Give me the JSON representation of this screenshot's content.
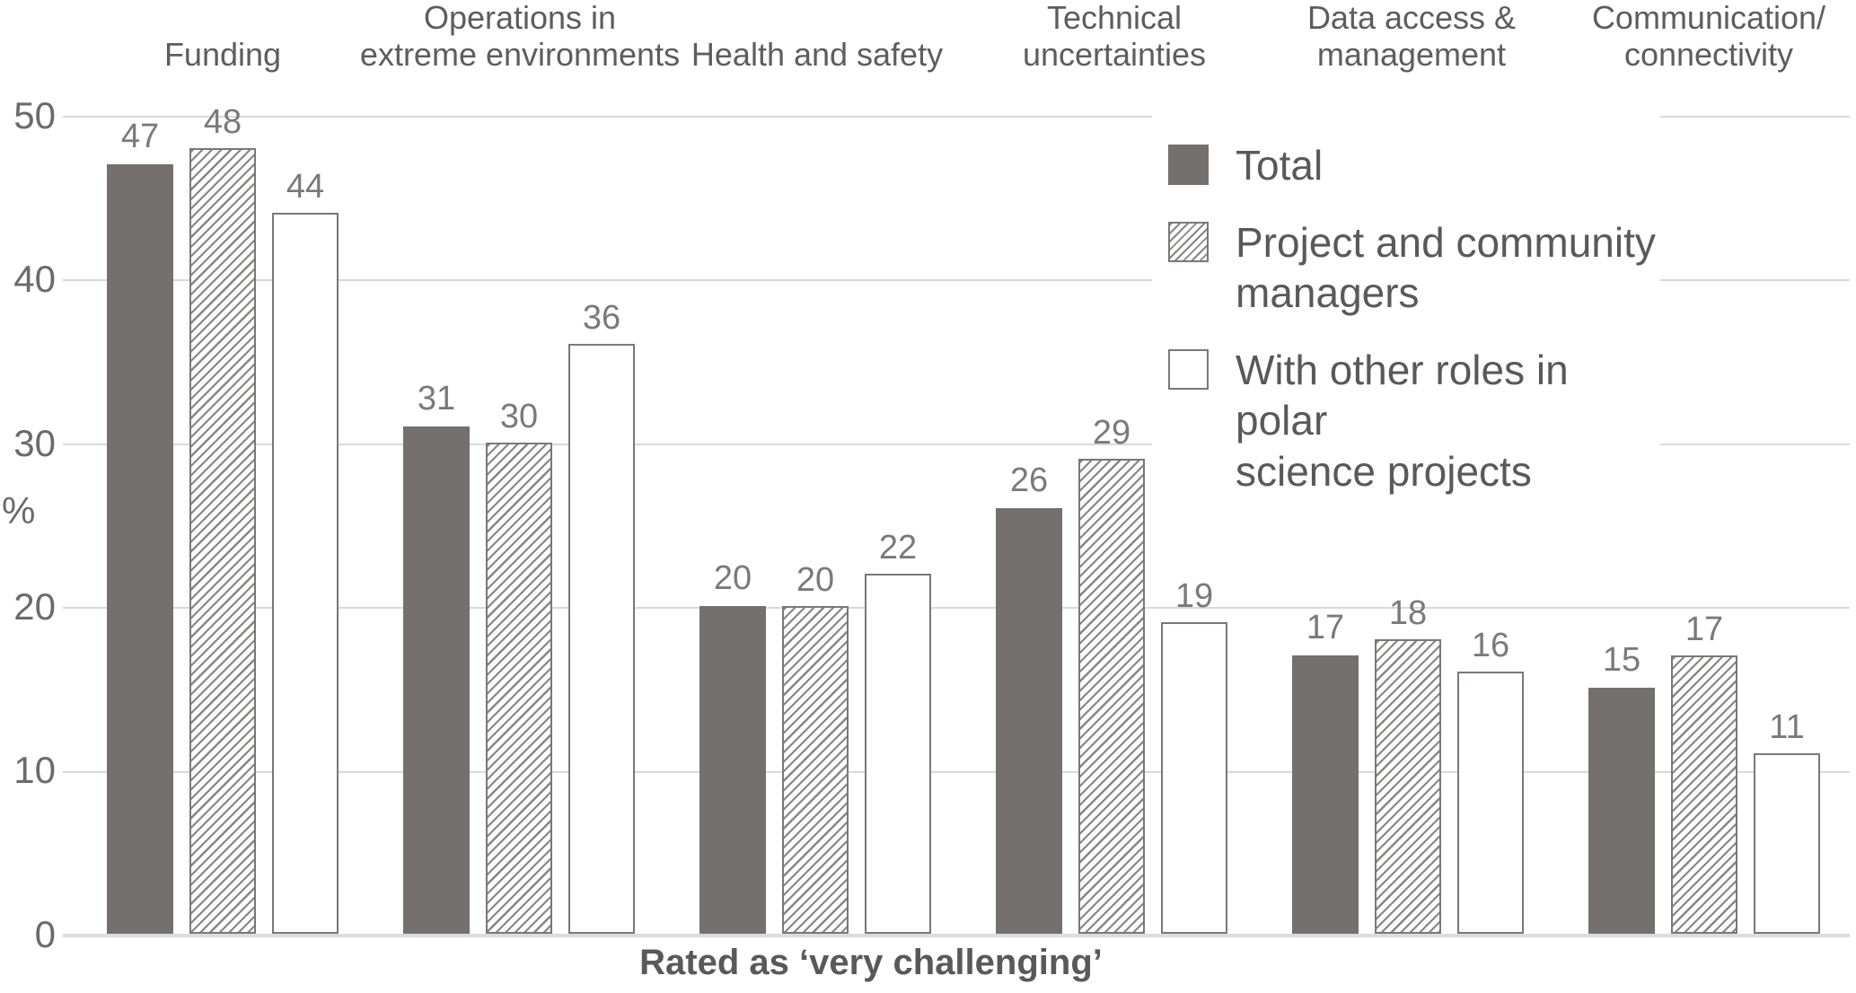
{
  "chart_data": {
    "type": "bar",
    "title": "",
    "categories": [
      "Funding",
      "Operations in\nextreme environments",
      "Health and safety",
      "Technical\nuncertainties",
      "Data access &\nmanagement",
      "Communication/\nconnectivity"
    ],
    "series": [
      {
        "name": "Total",
        "style": "solid",
        "values": [
          47,
          31,
          20,
          26,
          17,
          15
        ]
      },
      {
        "name": "Project and community managers",
        "style": "hatched",
        "values": [
          48,
          30,
          20,
          29,
          18,
          17
        ]
      },
      {
        "name": "With other roles in polar science projects",
        "style": "outline",
        "values": [
          44,
          36,
          22,
          19,
          16,
          11
        ]
      }
    ],
    "ylabel": "%",
    "ylim": [
      0,
      50
    ],
    "yticks": [
      0,
      10,
      20,
      30,
      40,
      50
    ],
    "grid": "horizontal",
    "legend_position": "top-right",
    "xlabel": "Rated as ‘very challenging’"
  },
  "axis": {
    "ylabel": "%",
    "ticks": [
      "50",
      "40",
      "30",
      "20",
      "10",
      "0"
    ]
  },
  "legend": {
    "items": [
      {
        "label": "Total",
        "style": "solid"
      },
      {
        "label": "Project and community\nmanagers",
        "style": "hatched"
      },
      {
        "label": "With other roles in polar\nscience projects",
        "style": "outline"
      }
    ]
  },
  "caption": "Rated as ‘very challenging’",
  "colors": {
    "bar_solid": "#757070",
    "hatch_line": "#8a8585",
    "bar_border": "#7c7777",
    "gridline": "#d9d9d9",
    "text_dark": "#595959",
    "text_value": "#7a7a7a"
  }
}
